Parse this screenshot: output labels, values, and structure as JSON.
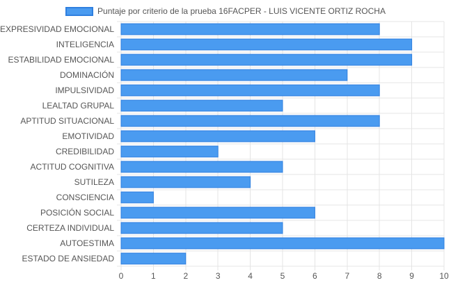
{
  "chart_data": {
    "type": "bar",
    "orientation": "horizontal",
    "categories": [
      "EXPRESIVIDAD EMOCIONAL",
      "INTELIGENCIA",
      "ESTABILIDAD EMOCIONAL",
      "DOMINACIÓN",
      "IMPULSIVIDAD",
      "LEALTAD GRUPAL",
      "APTITUD SITUACIONAL",
      "EMOTIVIDAD",
      "CREDIBILIDAD",
      "ACTITUD COGNITIVA",
      "SUTILEZA",
      "CONSCIENCIA",
      "POSICIÓN SOCIAL",
      "CERTEZA INDIVIDUAL",
      "AUTOESTIMA",
      "ESTADO DE ANSIEDAD"
    ],
    "series": [
      {
        "name": "Puntaje por criterio de la prueba 16FACPER - LUIS VICENTE ORTIZ ROCHA",
        "values": [
          8,
          9,
          9,
          7,
          8,
          5,
          8,
          6,
          3,
          5,
          4,
          1,
          6,
          5,
          10,
          2
        ]
      }
    ],
    "xlim": [
      0,
      10
    ],
    "xticks": [
      "0",
      "1",
      "2",
      "3",
      "4",
      "5",
      "6",
      "7",
      "8",
      "9",
      "10"
    ],
    "grid": true,
    "legend": "top-center",
    "colors": {
      "bar_fill": "#4a9bf0",
      "bar_border": "#2f7fdf",
      "grid": "#e4e4e4",
      "text": "#555555"
    }
  }
}
